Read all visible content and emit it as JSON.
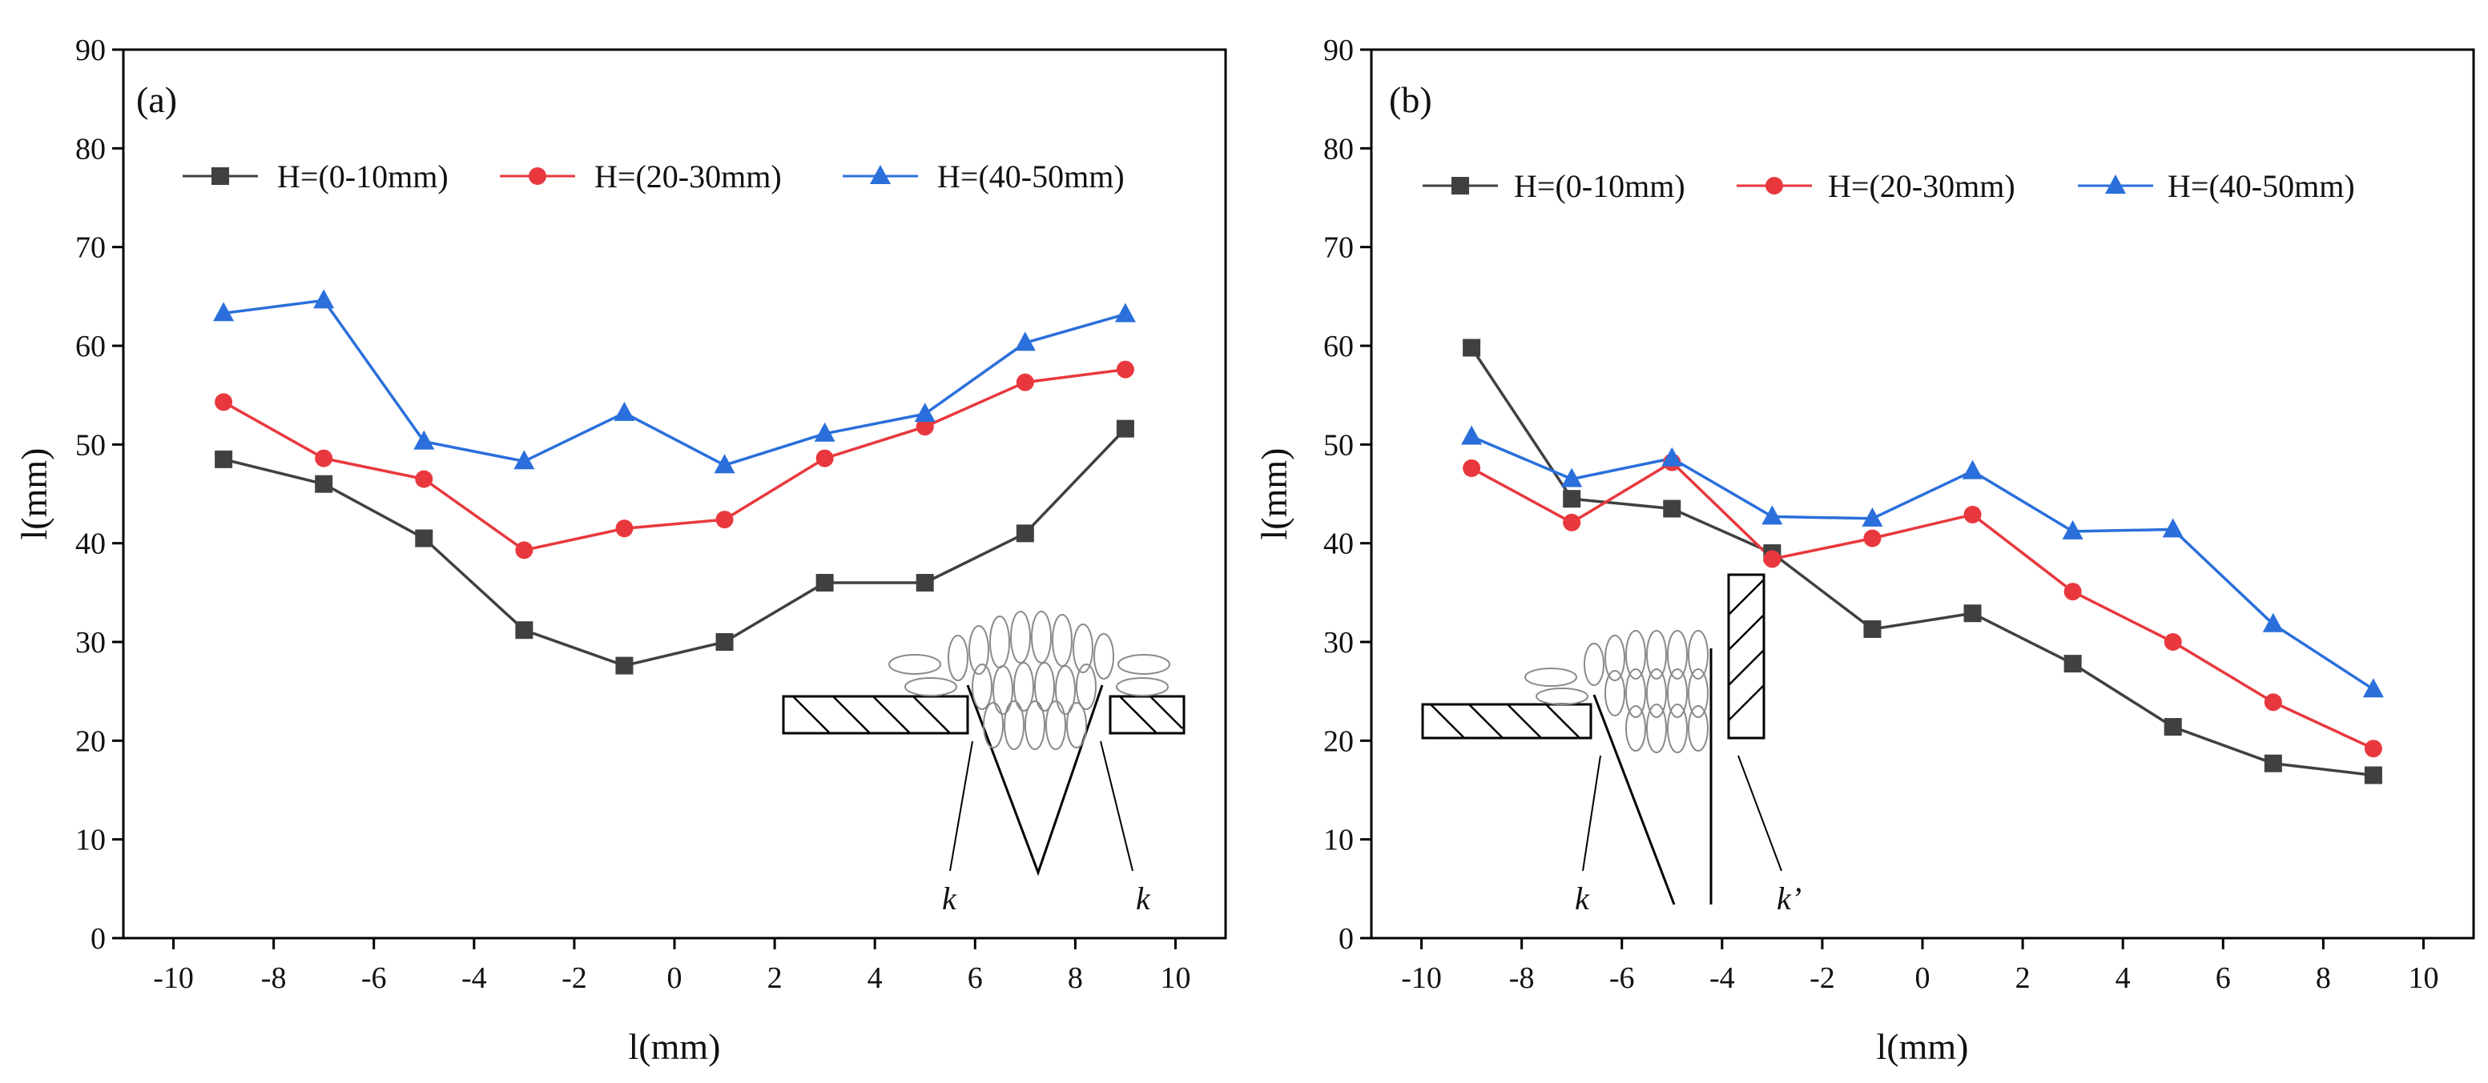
{
  "chart_data": [
    {
      "type": "line",
      "panel_label": "(a)",
      "xlabel": "l(mm)",
      "ylabel": "l(mm)",
      "xlim": [
        -11,
        11
      ],
      "ylim": [
        0,
        90
      ],
      "x_ticks": [
        -10,
        -8,
        -6,
        -4,
        -2,
        0,
        2,
        4,
        6,
        8,
        10
      ],
      "y_ticks": [
        0,
        10,
        20,
        30,
        40,
        50,
        60,
        70,
        80,
        90
      ],
      "x": [
        -9,
        -7,
        -5,
        -3,
        -1,
        1,
        3,
        5,
        7,
        9
      ],
      "series": [
        {
          "name": "H=(0-10mm)",
          "color": "#404040",
          "marker": "square",
          "values": [
            48.5,
            46,
            40.5,
            31.2,
            27.6,
            30,
            36,
            36,
            41,
            51.6
          ]
        },
        {
          "name": "H=(20-30mm)",
          "color": "#e8383d",
          "marker": "circle",
          "values": [
            54.3,
            48.6,
            46.5,
            39.3,
            41.5,
            42.4,
            48.6,
            51.8,
            56.3,
            57.6
          ]
        },
        {
          "name": "H=(40-50mm)",
          "color": "#2a6fdb",
          "marker": "triangle",
          "values": [
            63.3,
            64.6,
            50.3,
            48.3,
            53.2,
            47.9,
            51.1,
            53.1,
            60.3,
            63.2
          ]
        }
      ],
      "legend_position": "top",
      "annotations": [
        "k",
        "k"
      ]
    },
    {
      "type": "line",
      "panel_label": "(b)",
      "xlabel": "l(mm)",
      "ylabel": "l(mm)",
      "xlim": [
        -11,
        11
      ],
      "ylim": [
        0,
        90
      ],
      "x_ticks": [
        -10,
        -8,
        -6,
        -4,
        -2,
        0,
        2,
        4,
        6,
        8,
        10
      ],
      "y_ticks": [
        0,
        10,
        20,
        30,
        40,
        50,
        60,
        70,
        80,
        90
      ],
      "x": [
        -9,
        -7,
        -5,
        -3,
        -1,
        1,
        3,
        5,
        7,
        9
      ],
      "series": [
        {
          "name": "H=(0-10mm)",
          "color": "#404040",
          "marker": "square",
          "values": [
            59.8,
            44.5,
            43.5,
            39,
            31.3,
            32.9,
            27.8,
            21.4,
            17.7,
            16.5
          ]
        },
        {
          "name": "H=(20-30mm)",
          "color": "#e8383d",
          "marker": "circle",
          "values": [
            47.6,
            42.1,
            48.2,
            38.4,
            40.5,
            42.9,
            35.1,
            30,
            23.9,
            19.2
          ]
        },
        {
          "name": "H=(40-50mm)",
          "color": "#2a6fdb",
          "marker": "triangle",
          "values": [
            50.8,
            46.5,
            48.6,
            42.7,
            42.5,
            47.3,
            41.2,
            41.4,
            31.8,
            25.2
          ]
        }
      ],
      "legend_position": "top",
      "annotations": [
        "k",
        "k’"
      ]
    }
  ]
}
